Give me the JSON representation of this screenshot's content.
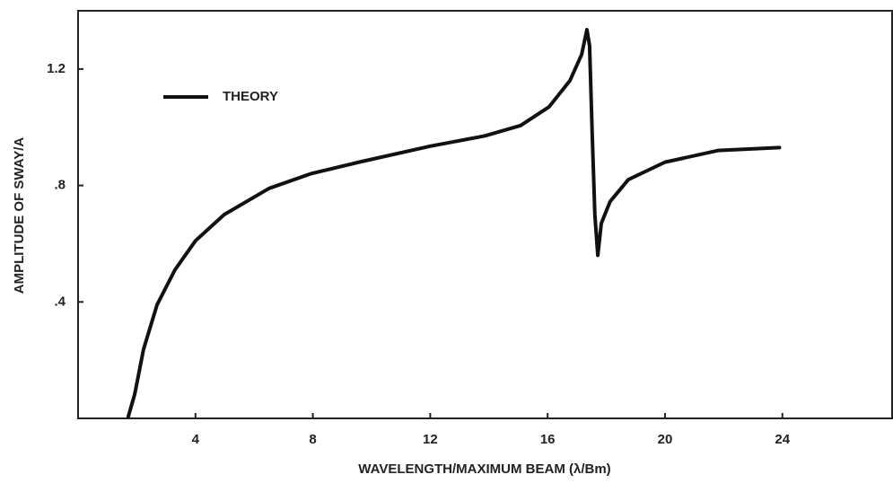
{
  "chart_data": {
    "type": "line",
    "xlabel": "WAVELENGTH/MAXIMUM BEAM (λ/Bm)",
    "ylabel": "AMPLITUDE OF SWAY/A",
    "xlim": [
      0,
      27.8
    ],
    "ylim": [
      0,
      1.4
    ],
    "xticks": [
      4,
      8,
      12,
      16,
      20,
      24
    ],
    "yticks": [
      {
        "value": 0.4,
        "label": ".4"
      },
      {
        "value": 0.8,
        "label": ".8"
      },
      1.2
    ],
    "grid": false,
    "legend": "upper left",
    "x": [
      1.71,
      1.93,
      2.23,
      2.69,
      3.3,
      4.0,
      4.98,
      6.51,
      7.92,
      9.57,
      12.0,
      13.85,
      15.08,
      16.05,
      16.76,
      17.16,
      17.34,
      17.43,
      17.52,
      17.61,
      17.71,
      17.83,
      18.13,
      18.75,
      20.0,
      21.8,
      23.9
    ],
    "series": [
      {
        "name": "THEORY",
        "color": "#111111",
        "values": [
          0.006,
          0.083,
          0.237,
          0.39,
          0.51,
          0.61,
          0.7,
          0.79,
          0.84,
          0.88,
          0.935,
          0.97,
          1.006,
          1.07,
          1.16,
          1.25,
          1.335,
          1.28,
          0.975,
          0.7,
          0.56,
          0.67,
          0.745,
          0.82,
          0.88,
          0.92,
          0.93
        ]
      }
    ]
  }
}
